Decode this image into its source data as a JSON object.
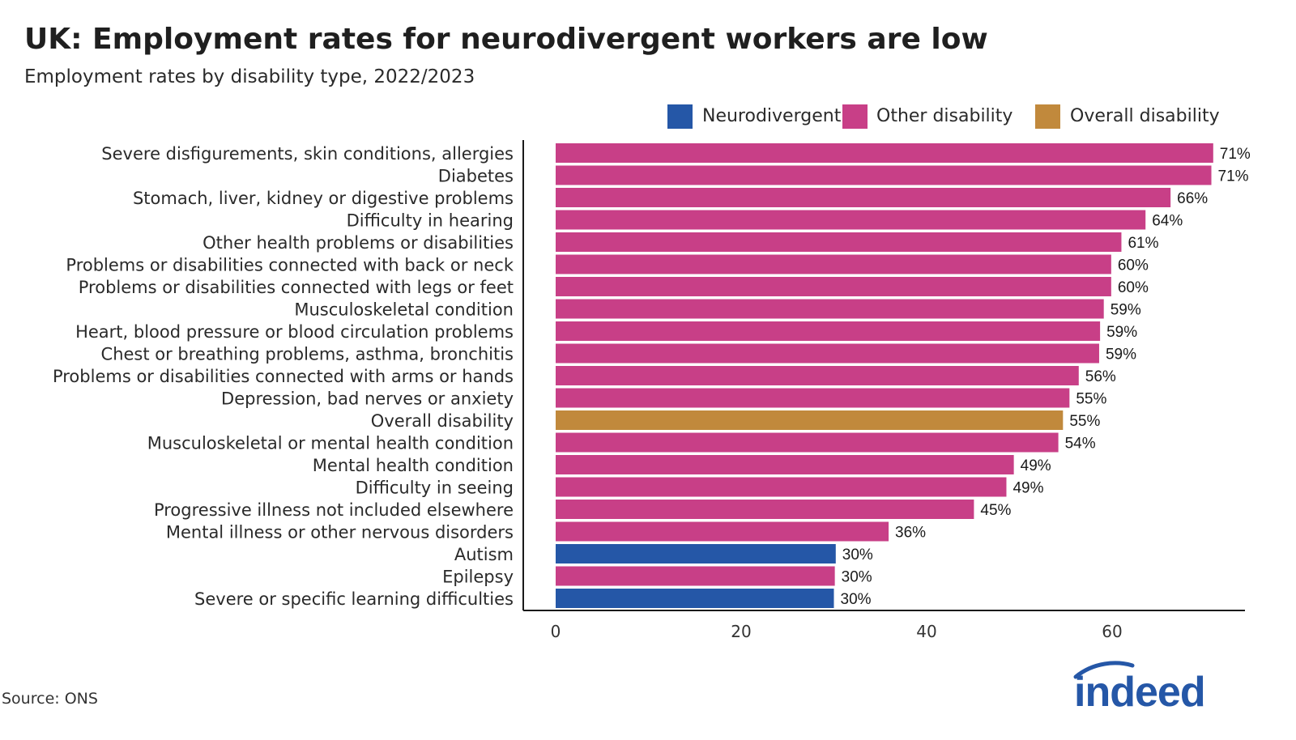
{
  "header": {
    "title": "UK: Employment rates for neurodivergent workers are low",
    "subtitle": "Employment rates by disability type, 2022/2023"
  },
  "legend": [
    {
      "label": "Neurodivergent",
      "color": "#2557a7"
    },
    {
      "label": "Other disability",
      "color": "#c83f87"
    },
    {
      "label": "Overall disability",
      "color": "#c1893c"
    }
  ],
  "chart_data": {
    "type": "bar",
    "orientation": "horizontal",
    "title": "UK: Employment rates for neurodivergent workers are low",
    "subtitle": "Employment rates by disability type, 2022/2023",
    "xlabel": "",
    "ylabel": "",
    "xlim": [
      0,
      74
    ],
    "xticks": [
      0,
      20,
      40,
      60
    ],
    "grid": false,
    "legend_position": "top-right",
    "categories": [
      "Severe disfigurements, skin conditions, allergies",
      "Diabetes",
      "Stomach, liver, kidney or digestive problems",
      "Difficulty in hearing",
      "Other health problems or disabilities",
      "Problems or disabilities connected with back or neck",
      "Problems or disabilities connected with legs or feet",
      "Musculoskeletal condition",
      "Heart, blood pressure or blood circulation problems",
      "Chest or breathing problems, asthma, bronchitis",
      "Problems or disabilities connected with arms or hands",
      "Depression, bad nerves or anxiety",
      "Overall disability",
      "Musculoskeletal or mental health condition",
      "Mental health condition",
      "Difficulty in seeing",
      "Progressive illness not included elsewhere",
      "Mental illness or other nervous disorders",
      "Autism",
      "Epilepsy",
      "Severe or specific learning difficulties"
    ],
    "values": [
      70.9,
      70.7,
      66.3,
      63.6,
      61.0,
      59.9,
      59.9,
      59.1,
      58.7,
      58.6,
      56.4,
      55.4,
      54.7,
      54.2,
      49.4,
      48.6,
      45.1,
      35.9,
      30.2,
      30.1,
      30.0
    ],
    "labels": [
      "71%",
      "71%",
      "66%",
      "64%",
      "61%",
      "60%",
      "60%",
      "59%",
      "59%",
      "59%",
      "56%",
      "55%",
      "55%",
      "54%",
      "49%",
      "49%",
      "45%",
      "36%",
      "30%",
      "30%",
      "30%"
    ],
    "groups": [
      "Other disability",
      "Other disability",
      "Other disability",
      "Other disability",
      "Other disability",
      "Other disability",
      "Other disability",
      "Other disability",
      "Other disability",
      "Other disability",
      "Other disability",
      "Other disability",
      "Overall disability",
      "Other disability",
      "Other disability",
      "Other disability",
      "Other disability",
      "Other disability",
      "Neurodivergent",
      "Other disability",
      "Neurodivergent"
    ]
  },
  "footer": {
    "source": "Source: ONS",
    "logo_text": "indeed"
  }
}
